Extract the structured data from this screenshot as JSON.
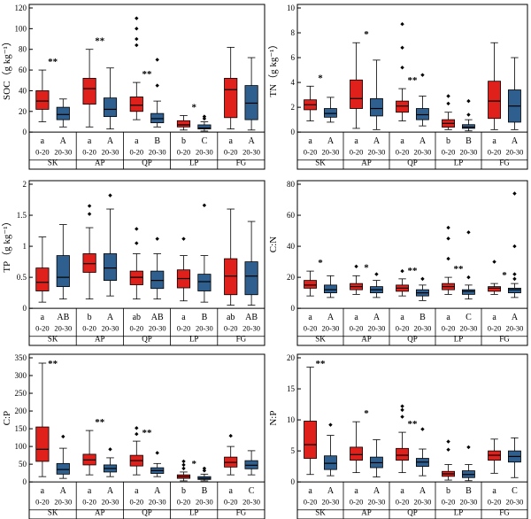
{
  "colors": {
    "depth_0_20": "#e0201b",
    "depth_20_30": "#2f5f8f",
    "median": "#000000",
    "frame": "#000000"
  },
  "chart_data": [
    {
      "type": "box",
      "ylabel": "SOC（g kg⁻¹）",
      "ylim": [
        0,
        120
      ],
      "yticks": [
        0,
        20,
        40,
        60,
        80,
        100,
        120
      ],
      "groups": [
        "SK",
        "AP",
        "QP",
        "LP",
        "FG"
      ],
      "levels": [
        "0-20",
        "20-30"
      ],
      "letters": [
        [
          "a",
          "A"
        ],
        [
          "a",
          "A"
        ],
        [
          "a",
          "B"
        ],
        [
          "b",
          "C"
        ],
        [
          "a",
          "A"
        ]
      ],
      "significance": [
        "**",
        "**",
        "**",
        "*",
        ""
      ],
      "boxes": [
        [
          {
            "min": 10,
            "q1": 22,
            "median": 30,
            "q3": 40,
            "max": 60,
            "outliers": []
          },
          {
            "min": 5,
            "q1": 12,
            "median": 17,
            "q3": 24,
            "max": 32,
            "outliers": []
          }
        ],
        [
          {
            "min": 5,
            "q1": 27,
            "median": 42,
            "q3": 52,
            "max": 80,
            "outliers": []
          },
          {
            "min": 3,
            "q1": 15,
            "median": 22,
            "q3": 33,
            "max": 62,
            "outliers": []
          }
        ],
        [
          {
            "min": 12,
            "q1": 20,
            "median": 26,
            "q3": 34,
            "max": 48,
            "outliers": [
              84,
              90,
              100,
              110
            ]
          },
          {
            "min": 5,
            "q1": 9,
            "median": 13,
            "q3": 18,
            "max": 30,
            "outliers": [
              45,
              70
            ]
          }
        ],
        [
          {
            "min": 2,
            "q1": 5,
            "median": 7,
            "q3": 11,
            "max": 16,
            "outliers": []
          },
          {
            "min": 1,
            "q1": 3,
            "median": 4,
            "q3": 7,
            "max": 10,
            "outliers": [
              13,
              15
            ]
          }
        ],
        [
          {
            "min": 3,
            "q1": 14,
            "median": 41,
            "q3": 52,
            "max": 82,
            "outliers": []
          },
          {
            "min": 2,
            "q1": 12,
            "median": 28,
            "q3": 45,
            "max": 72,
            "outliers": []
          }
        ]
      ]
    },
    {
      "type": "box",
      "ylabel": "TN（g kg⁻¹）",
      "ylim": [
        0,
        10
      ],
      "yticks": [
        0,
        2,
        4,
        6,
        8,
        10
      ],
      "groups": [
        "SK",
        "AP",
        "QP",
        "LP",
        "FG"
      ],
      "levels": [
        "0-20",
        "20-30"
      ],
      "letters": [
        [
          "a",
          "A"
        ],
        [
          "a",
          "A"
        ],
        [
          "a",
          "A"
        ],
        [
          "b",
          "B"
        ],
        [
          "a",
          "A"
        ]
      ],
      "significance": [
        "*",
        "*",
        "**",
        "",
        ""
      ],
      "boxes": [
        [
          {
            "min": 0.9,
            "q1": 1.8,
            "median": 2.2,
            "q3": 2.6,
            "max": 3.7,
            "outliers": []
          },
          {
            "min": 0.8,
            "q1": 1.2,
            "median": 1.5,
            "q3": 1.9,
            "max": 2.8,
            "outliers": []
          }
        ],
        [
          {
            "min": 0.3,
            "q1": 1.9,
            "median": 2.7,
            "q3": 4.2,
            "max": 7.2,
            "outliers": []
          },
          {
            "min": 0.2,
            "q1": 1.3,
            "median": 1.9,
            "q3": 2.7,
            "max": 5.8,
            "outliers": []
          }
        ],
        [
          {
            "min": 0.9,
            "q1": 1.6,
            "median": 2.1,
            "q3": 2.5,
            "max": 3.5,
            "outliers": [
              5.2,
              6.8,
              8.7
            ]
          },
          {
            "min": 0.5,
            "q1": 1.0,
            "median": 1.4,
            "q3": 1.9,
            "max": 2.9,
            "outliers": [
              4.6
            ]
          }
        ],
        [
          {
            "min": 0.2,
            "q1": 0.4,
            "median": 0.7,
            "q3": 1.0,
            "max": 1.6,
            "outliers": [
              2.3,
              2.9
            ]
          },
          {
            "min": 0.1,
            "q1": 0.3,
            "median": 0.4,
            "q3": 0.6,
            "max": 1.0,
            "outliers": [
              1.4,
              2.5
            ]
          }
        ],
        [
          {
            "min": 0.2,
            "q1": 1.1,
            "median": 2.5,
            "q3": 4.1,
            "max": 7.2,
            "outliers": []
          },
          {
            "min": 0.2,
            "q1": 0.8,
            "median": 2.1,
            "q3": 3.4,
            "max": 6.0,
            "outliers": []
          }
        ]
      ]
    },
    {
      "type": "box",
      "ylabel": "TP（g kg⁻¹）",
      "ylim": [
        0,
        2.0
      ],
      "yticks": [
        0.0,
        0.5,
        1.0,
        1.5,
        2.0
      ],
      "groups": [
        "SK",
        "AP",
        "QP",
        "LP",
        "FG"
      ],
      "levels": [
        "0-20",
        "20-30"
      ],
      "letters": [
        [
          "a",
          "AB"
        ],
        [
          "b",
          "A"
        ],
        [
          "ab",
          "AB"
        ],
        [
          "a",
          "B"
        ],
        [
          "ab",
          "AB"
        ]
      ],
      "significance": [
        "",
        "",
        "",
        "",
        ""
      ],
      "boxes": [
        [
          {
            "min": 0.1,
            "q1": 0.28,
            "median": 0.42,
            "q3": 0.65,
            "max": 1.15,
            "outliers": []
          },
          {
            "min": 0.15,
            "q1": 0.35,
            "median": 0.5,
            "q3": 0.85,
            "max": 1.35,
            "outliers": []
          }
        ],
        [
          {
            "min": 0.15,
            "q1": 0.58,
            "median": 0.72,
            "q3": 0.88,
            "max": 1.3,
            "outliers": [
              1.52,
              1.65
            ]
          },
          {
            "min": 0.2,
            "q1": 0.45,
            "median": 0.65,
            "q3": 0.88,
            "max": 1.6,
            "outliers": [
              1.82
            ]
          }
        ],
        [
          {
            "min": 0.15,
            "q1": 0.38,
            "median": 0.5,
            "q3": 0.6,
            "max": 0.88,
            "outliers": [
              1.05,
              1.28
            ]
          },
          {
            "min": 0.15,
            "q1": 0.32,
            "median": 0.45,
            "q3": 0.6,
            "max": 0.88,
            "outliers": [
              1.12
            ]
          }
        ],
        [
          {
            "min": 0.12,
            "q1": 0.33,
            "median": 0.48,
            "q3": 0.62,
            "max": 0.85,
            "outliers": [
              1.12
            ]
          },
          {
            "min": 0.1,
            "q1": 0.28,
            "median": 0.43,
            "q3": 0.55,
            "max": 0.85,
            "outliers": [
              1.66
            ]
          }
        ],
        [
          {
            "min": 0.05,
            "q1": 0.22,
            "median": 0.52,
            "q3": 0.8,
            "max": 1.6,
            "outliers": []
          },
          {
            "min": 0.05,
            "q1": 0.22,
            "median": 0.52,
            "q3": 0.75,
            "max": 1.4,
            "outliers": []
          }
        ]
      ]
    },
    {
      "type": "box",
      "ylabel": "C:N",
      "ylim": [
        0,
        80
      ],
      "yticks": [
        0,
        20,
        40,
        60,
        80
      ],
      "groups": [
        "SK",
        "AP",
        "QP",
        "LP",
        "FG"
      ],
      "levels": [
        "0-20",
        "20-30"
      ],
      "letters": [
        [
          "a",
          "A"
        ],
        [
          "a",
          "A"
        ],
        [
          "a",
          "B"
        ],
        [
          "a",
          "C"
        ],
        [
          "a",
          "A"
        ]
      ],
      "significance": [
        "*",
        "*",
        "**",
        "**",
        "*"
      ],
      "boxes": [
        [
          {
            "min": 8,
            "q1": 13,
            "median": 15,
            "q3": 18,
            "max": 24,
            "outliers": []
          },
          {
            "min": 7,
            "q1": 10,
            "median": 12,
            "q3": 15,
            "max": 21,
            "outliers": []
          }
        ],
        [
          {
            "min": 9,
            "q1": 12,
            "median": 14,
            "q3": 16,
            "max": 21,
            "outliers": [
              27
            ]
          },
          {
            "min": 7,
            "q1": 10,
            "median": 12,
            "q3": 14,
            "max": 18,
            "outliers": [
              22
            ]
          }
        ],
        [
          {
            "min": 8,
            "q1": 11,
            "median": 13,
            "q3": 15,
            "max": 19,
            "outliers": [
              24
            ]
          },
          {
            "min": 5,
            "q1": 8,
            "median": 10,
            "q3": 12,
            "max": 15,
            "outliers": [
              19
            ]
          }
        ],
        [
          {
            "min": 9,
            "q1": 12,
            "median": 14,
            "q3": 16,
            "max": 20,
            "outliers": [
              32,
              45,
              52
            ]
          },
          {
            "min": 6,
            "q1": 9,
            "median": 11,
            "q3": 12,
            "max": 15,
            "outliers": [
              20,
              49
            ]
          }
        ],
        [
          {
            "min": 9,
            "q1": 11,
            "median": 13,
            "q3": 14,
            "max": 16,
            "outliers": [
              30
            ]
          },
          {
            "min": 7,
            "q1": 10,
            "median": 12,
            "q3": 13,
            "max": 16,
            "outliers": [
              19,
              22,
              40,
              74
            ]
          }
        ]
      ]
    },
    {
      "type": "box",
      "ylabel": "C:P",
      "ylim": [
        0,
        350
      ],
      "yticks": [
        0,
        50,
        100,
        150,
        200,
        250,
        300,
        350
      ],
      "groups": [
        "SK",
        "AP",
        "QP",
        "LP",
        "FG"
      ],
      "levels": [
        "0-20",
        "20-30"
      ],
      "letters": [
        [
          "a",
          "A"
        ],
        [
          "a",
          "A"
        ],
        [
          "a",
          "A"
        ],
        [
          "b",
          "B"
        ],
        [
          "a",
          "C"
        ]
      ],
      "significance": [
        "**",
        "**",
        "**",
        "*",
        ""
      ],
      "boxes": [
        [
          {
            "min": 15,
            "q1": 58,
            "median": 92,
            "q3": 155,
            "max": 335,
            "outliers": []
          },
          {
            "min": 10,
            "q1": 22,
            "median": 35,
            "q3": 52,
            "max": 95,
            "outliers": [
              128
            ]
          }
        ],
        [
          {
            "min": 20,
            "q1": 48,
            "median": 62,
            "q3": 78,
            "max": 145,
            "outliers": []
          },
          {
            "min": 15,
            "q1": 28,
            "median": 38,
            "q3": 48,
            "max": 68,
            "outliers": [
              92
            ]
          }
        ],
        [
          {
            "min": 20,
            "q1": 45,
            "median": 60,
            "q3": 75,
            "max": 115,
            "outliers": [
              135,
              152
            ]
          },
          {
            "min": 15,
            "q1": 24,
            "median": 32,
            "q3": 40,
            "max": 52,
            "outliers": [
              82
            ]
          }
        ],
        [
          {
            "min": 3,
            "q1": 10,
            "median": 15,
            "q3": 20,
            "max": 28,
            "outliers": [
              38,
              48,
              58
            ]
          },
          {
            "min": 3,
            "q1": 7,
            "median": 10,
            "q3": 15,
            "max": 22,
            "outliers": [
              32,
              38
            ]
          }
        ],
        [
          {
            "min": 20,
            "q1": 42,
            "median": 55,
            "q3": 70,
            "max": 100,
            "outliers": [
              130
            ]
          },
          {
            "min": 20,
            "q1": 37,
            "median": 47,
            "q3": 60,
            "max": 88,
            "outliers": []
          }
        ]
      ]
    },
    {
      "type": "box",
      "ylabel": "N:P",
      "ylim": [
        0,
        20
      ],
      "yticks": [
        0,
        5,
        10,
        15,
        20
      ],
      "groups": [
        "SK",
        "AP",
        "QP",
        "LP",
        "FG"
      ],
      "levels": [
        "0-20",
        "20-30"
      ],
      "letters": [
        [
          "a",
          "A"
        ],
        [
          "a",
          "A"
        ],
        [
          "a",
          "A"
        ],
        [
          "b",
          "B"
        ],
        [
          "a",
          "C"
        ]
      ],
      "significance": [
        "**",
        "*",
        "**",
        "",
        ""
      ],
      "boxes": [
        [
          {
            "min": 1.2,
            "q1": 3.8,
            "median": 6.0,
            "q3": 9.8,
            "max": 18.5,
            "outliers": []
          },
          {
            "min": 1.0,
            "q1": 2.0,
            "median": 3.0,
            "q3": 4.2,
            "max": 7.5,
            "outliers": [
              9.2
            ]
          }
        ],
        [
          {
            "min": 1.5,
            "q1": 3.5,
            "median": 4.4,
            "q3": 5.6,
            "max": 9.7,
            "outliers": []
          },
          {
            "min": 0.8,
            "q1": 2.3,
            "median": 3.1,
            "q3": 4.0,
            "max": 6.8,
            "outliers": []
          }
        ],
        [
          {
            "min": 1.5,
            "q1": 3.5,
            "median": 4.3,
            "q3": 5.4,
            "max": 8.0,
            "outliers": [
              10.5,
              11.6,
              12.2
            ]
          },
          {
            "min": 1.0,
            "q1": 2.5,
            "median": 3.2,
            "q3": 3.8,
            "max": 5.3,
            "outliers": [
              8.5
            ]
          }
        ],
        [
          {
            "min": 0.3,
            "q1": 0.9,
            "median": 1.3,
            "q3": 1.7,
            "max": 2.8,
            "outliers": [
              5.2,
              6.5
            ]
          },
          {
            "min": 0.2,
            "q1": 0.7,
            "median": 1.2,
            "q3": 1.8,
            "max": 2.8,
            "outliers": [
              5.6
            ]
          }
        ],
        [
          {
            "min": 1.4,
            "q1": 3.5,
            "median": 4.3,
            "q3": 5.0,
            "max": 6.9,
            "outliers": []
          },
          {
            "min": 0.7,
            "q1": 3.2,
            "median": 4.1,
            "q3": 5.0,
            "max": 7.1,
            "outliers": []
          }
        ]
      ]
    }
  ]
}
